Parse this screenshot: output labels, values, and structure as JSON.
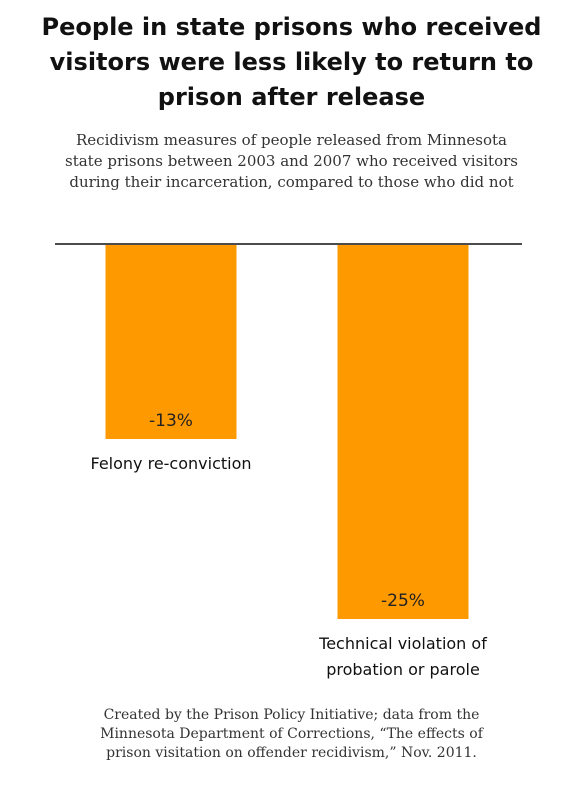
{
  "header": {
    "title_lines": [
      "People in state prisons who received",
      "visitors were less likely to return to",
      "prison after release"
    ],
    "subtitle_lines": [
      "Recidivism measures of people released from Minnesota",
      "state prisons between 2003 and 2007 who received visitors",
      "during their incarceration, compared to those who did not"
    ]
  },
  "chart_data": {
    "type": "bar",
    "orientation": "vertical-downward",
    "categories": [
      [
        "Felony re-conviction"
      ],
      [
        "Technical violation of",
        "probation or parole"
      ]
    ],
    "values": [
      -13,
      -25
    ],
    "value_labels": [
      "-13%",
      "-25%"
    ],
    "unit": "%",
    "ylim": [
      -25,
      0
    ],
    "grid": false,
    "legend": "none",
    "bar_color": "#FF9900",
    "baseline_color": "#111111"
  },
  "footer": {
    "credit_lines": [
      "Created by the Prison Policy Initiative; data from the",
      "Minnesota Department of Corrections, “The effects of",
      "prison visitation on offender recidivism,” Nov. 2011."
    ]
  }
}
